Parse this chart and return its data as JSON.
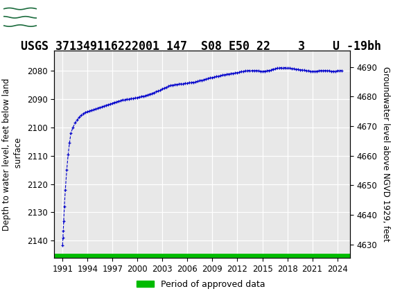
{
  "title": "USGS 371349116222001 147  S08 E50 22    3    U -19bh",
  "ylabel_left": "Depth to water level, feet below land\n surface",
  "ylabel_right": "Groundwater level above NGVD 1929, feet",
  "ylim_left": [
    2146,
    2073
  ],
  "ylim_right": [
    4625.5,
    4695.5
  ],
  "yticks_left": [
    2080,
    2090,
    2100,
    2110,
    2120,
    2130,
    2140
  ],
  "yticks_right": [
    4630,
    4640,
    4650,
    4660,
    4670,
    4680,
    4690
  ],
  "xticks": [
    1991,
    1994,
    1997,
    2000,
    2003,
    2006,
    2009,
    2012,
    2015,
    2018,
    2021,
    2024
  ],
  "xlim": [
    1990.0,
    2025.5
  ],
  "header_color": "#1a6b3c",
  "line_color": "#0000cc",
  "approved_color": "#00bb00",
  "plot_bg_color": "#e8e8e8",
  "grid_color": "#ffffff",
  "title_fontsize": 12,
  "axis_label_fontsize": 8.5,
  "tick_fontsize": 8.5,
  "legend_label": "Period of approved data",
  "data_x": [
    1991.0,
    1991.04,
    1991.08,
    1991.13,
    1991.21,
    1991.33,
    1991.5,
    1991.67,
    1991.83,
    1992.0,
    1992.25,
    1992.5,
    1992.75,
    1993.0,
    1993.25,
    1993.5,
    1993.75,
    1994.0,
    1994.25,
    1994.5,
    1994.75,
    1995.0,
    1995.25,
    1995.5,
    1995.75,
    1996.0,
    1996.25,
    1996.5,
    1996.75,
    1997.0,
    1997.25,
    1997.5,
    1997.75,
    1998.0,
    1998.25,
    1998.5,
    1998.75,
    1999.0,
    1999.25,
    1999.5,
    1999.75,
    2000.0,
    2000.25,
    2000.5,
    2000.75,
    2001.0,
    2001.25,
    2001.5,
    2001.75,
    2002.0,
    2002.25,
    2002.5,
    2002.75,
    2003.0,
    2003.25,
    2003.5,
    2003.75,
    2004.0,
    2004.25,
    2004.5,
    2004.75,
    2005.0,
    2005.25,
    2005.5,
    2005.75,
    2006.0,
    2006.25,
    2006.5,
    2006.75,
    2007.0,
    2007.25,
    2007.5,
    2007.75,
    2008.0,
    2008.25,
    2008.5,
    2008.75,
    2009.0,
    2009.25,
    2009.5,
    2009.75,
    2010.0,
    2010.25,
    2010.5,
    2010.75,
    2011.0,
    2011.25,
    2011.5,
    2011.75,
    2012.0,
    2012.25,
    2012.5,
    2012.75,
    2013.0,
    2013.25,
    2013.5,
    2013.75,
    2014.0,
    2014.25,
    2014.5,
    2014.75,
    2015.0,
    2015.25,
    2015.5,
    2015.75,
    2016.0,
    2016.25,
    2016.5,
    2016.75,
    2017.0,
    2017.25,
    2017.5,
    2017.75,
    2018.0,
    2018.25,
    2018.5,
    2018.75,
    2019.0,
    2019.25,
    2019.5,
    2019.75,
    2020.0,
    2020.25,
    2020.5,
    2020.75,
    2021.0,
    2021.25,
    2021.5,
    2021.75,
    2022.0,
    2022.25,
    2022.5,
    2022.75,
    2023.0,
    2023.25,
    2023.5,
    2023.75,
    2024.0,
    2024.25,
    2024.5
  ],
  "data_y": [
    2141.5,
    2139.0,
    2136.5,
    2133.0,
    2128.0,
    2122.0,
    2115.0,
    2109.5,
    2105.5,
    2102.0,
    2100.0,
    2098.5,
    2097.5,
    2096.5,
    2095.8,
    2095.2,
    2094.8,
    2094.5,
    2094.2,
    2094.0,
    2093.8,
    2093.5,
    2093.2,
    2093.0,
    2092.8,
    2092.5,
    2092.2,
    2092.0,
    2091.8,
    2091.5,
    2091.2,
    2091.0,
    2090.8,
    2090.5,
    2090.3,
    2090.2,
    2090.1,
    2090.0,
    2089.9,
    2089.8,
    2089.7,
    2089.5,
    2089.3,
    2089.1,
    2089.0,
    2088.8,
    2088.5,
    2088.3,
    2088.0,
    2087.8,
    2087.5,
    2087.2,
    2087.0,
    2086.5,
    2086.2,
    2085.8,
    2085.5,
    2085.3,
    2085.1,
    2085.0,
    2084.9,
    2084.8,
    2084.7,
    2084.6,
    2084.5,
    2084.4,
    2084.3,
    2084.2,
    2084.1,
    2084.0,
    2083.8,
    2083.6,
    2083.4,
    2083.2,
    2083.0,
    2082.8,
    2082.6,
    2082.5,
    2082.3,
    2082.1,
    2082.0,
    2081.8,
    2081.6,
    2081.5,
    2081.3,
    2081.2,
    2081.1,
    2081.0,
    2080.9,
    2080.7,
    2080.5,
    2080.3,
    2080.2,
    2080.1,
    2080.0,
    2080.0,
    2080.0,
    2080.0,
    2080.0,
    2080.1,
    2080.2,
    2080.3,
    2080.2,
    2080.1,
    2080.0,
    2079.8,
    2079.5,
    2079.3,
    2079.2,
    2079.1,
    2079.0,
    2079.0,
    2079.0,
    2079.1,
    2079.2,
    2079.3,
    2079.4,
    2079.5,
    2079.6,
    2079.7,
    2079.8,
    2079.9,
    2080.0,
    2080.1,
    2080.2,
    2080.3,
    2080.3,
    2080.2,
    2080.1,
    2080.0,
    2080.0,
    2080.0,
    2080.0,
    2080.1,
    2080.2,
    2080.3,
    2080.2,
    2080.1,
    2080.0,
    2080.0
  ]
}
